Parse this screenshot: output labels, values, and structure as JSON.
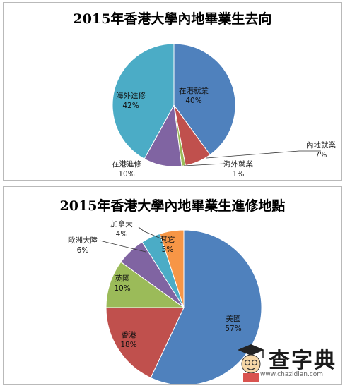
{
  "chart_data": [
    {
      "type": "pie",
      "title": "2015年香港大學內地畢業生去向",
      "categories": [
        "在港就業",
        "內地就業",
        "海外就業",
        "在港進修",
        "海外進修"
      ],
      "values": [
        40,
        7,
        1,
        10,
        42
      ],
      "value_labels": [
        "40%",
        "7%",
        "1%",
        "10%",
        "42%"
      ],
      "colors": [
        "#4f81bd",
        "#c0504d",
        "#9bbb59",
        "#8064a2",
        "#4bacc6"
      ],
      "start": "12 o'clock",
      "direction": "clockwise"
    },
    {
      "type": "pie",
      "title": "2015年香港大學內地畢業生進修地點",
      "categories": [
        "美國",
        "香港",
        "英國",
        "歐洲大陸",
        "加拿大",
        "其它"
      ],
      "values": [
        57,
        18,
        10,
        6,
        4,
        5
      ],
      "value_labels": [
        "57%",
        "18%",
        "10%",
        "6%",
        "4%",
        "5%"
      ],
      "colors": [
        "#4f81bd",
        "#c0504d",
        "#9bbb59",
        "#8064a2",
        "#4bacc6",
        "#f79646"
      ],
      "start": "12 o'clock",
      "direction": "clockwise"
    }
  ],
  "watermark": {
    "text": "查字典",
    "url": "www.chazidian.com"
  }
}
